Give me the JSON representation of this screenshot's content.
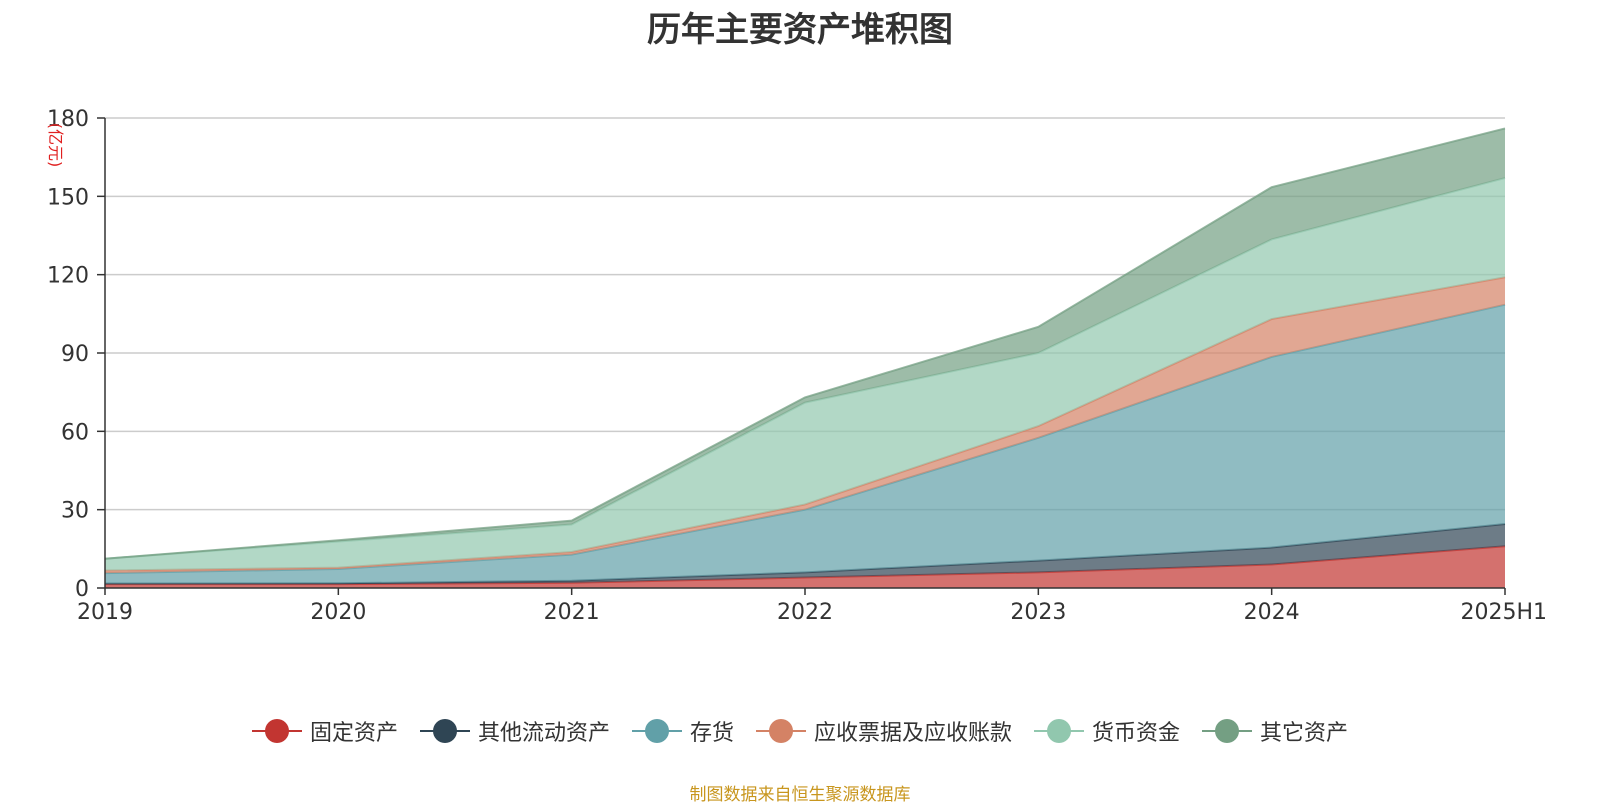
{
  "chart_data": {
    "type": "area",
    "stacked": true,
    "title": "历年主要资产堆积图",
    "ylabel": "(亿元)",
    "xlabel": "",
    "categories": [
      "2019",
      "2020",
      "2021",
      "2022",
      "2023",
      "2024",
      "2025H1"
    ],
    "ylim": [
      0,
      180
    ],
    "yticks": [
      0,
      30,
      60,
      90,
      120,
      150,
      180
    ],
    "grid": true,
    "legend_position": "bottom",
    "series": [
      {
        "name": "固定资产",
        "color": "#c23531",
        "values": [
          1.5,
          1.5,
          2.0,
          4.0,
          6.0,
          9.0,
          16.0
        ]
      },
      {
        "name": "其他流动资产",
        "color": "#2f4554",
        "values": [
          0.2,
          0.3,
          0.8,
          2.0,
          4.5,
          6.5,
          8.5
        ]
      },
      {
        "name": "存货",
        "color": "#61a0a8",
        "values": [
          4.0,
          5.5,
          10.0,
          24.0,
          47.0,
          73.0,
          84.0
        ]
      },
      {
        "name": "应收票据及应收账款",
        "color": "#d48265",
        "values": [
          1.0,
          0.5,
          1.0,
          2.0,
          4.5,
          14.5,
          10.5
        ]
      },
      {
        "name": "货币资金",
        "color": "#91c7ae",
        "values": [
          4.5,
          10.0,
          10.5,
          39.0,
          28.0,
          30.5,
          38.0
        ]
      },
      {
        "name": "其它资产",
        "color": "#749f83",
        "values": [
          0.0,
          0.5,
          1.5,
          2.0,
          10.0,
          20.0,
          19.0
        ]
      }
    ]
  },
  "source_note": "制图数据来自恒生聚源数据库"
}
